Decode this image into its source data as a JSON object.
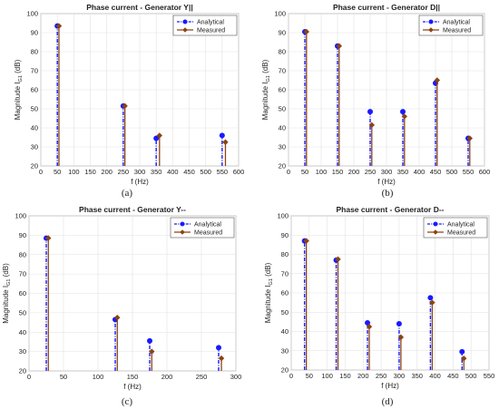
{
  "chart_data": [
    {
      "panel": "(a)",
      "type": "stem",
      "title": "Phase current - Generator Y||",
      "xlabel": "f (Hz)",
      "ylabel": "Magnitude I",
      "ylabel_sub": "G1",
      "ylabel_unit": " (dB)",
      "xlim": [
        0,
        600
      ],
      "ylim": [
        20,
        100
      ],
      "xticks": [
        0,
        50,
        100,
        150,
        200,
        250,
        300,
        350,
        400,
        450,
        500,
        550,
        600
      ],
      "yticks": [
        20,
        30,
        40,
        50,
        60,
        70,
        80,
        90,
        100
      ],
      "grid": true,
      "legend_position": "top-right",
      "series": [
        {
          "name": "Analytical",
          "color": "#1a1aff",
          "marker": "circle",
          "line": "dash-dot",
          "x": [
            50,
            250,
            350,
            550
          ],
          "y": [
            93.5,
            51.5,
            34.5,
            36
          ]
        },
        {
          "name": "Measured",
          "color": "#8b4513",
          "marker": "diamond",
          "line": "solid",
          "x": [
            55,
            255,
            360,
            560
          ],
          "y": [
            93.5,
            51.5,
            36,
            32.5
          ]
        }
      ]
    },
    {
      "panel": "(b)",
      "type": "stem",
      "title": "Phase current - Generator D||",
      "xlabel": "f (Hz)",
      "ylabel": "Magnitude I",
      "ylabel_sub": "G1",
      "ylabel_unit": " (dB)",
      "xlim": [
        0,
        600
      ],
      "ylim": [
        20,
        100
      ],
      "xticks": [
        0,
        50,
        100,
        150,
        200,
        250,
        300,
        350,
        400,
        450,
        500,
        550,
        600
      ],
      "yticks": [
        20,
        30,
        40,
        50,
        60,
        70,
        80,
        90,
        100
      ],
      "grid": true,
      "legend_position": "top-right",
      "series": [
        {
          "name": "Analytical",
          "color": "#1a1aff",
          "marker": "circle",
          "line": "dash-dot",
          "x": [
            50,
            150,
            250,
            350,
            450,
            550
          ],
          "y": [
            90.5,
            83,
            48.5,
            48.5,
            63.5,
            34.5
          ]
        },
        {
          "name": "Measured",
          "color": "#8b4513",
          "marker": "diamond",
          "line": "solid",
          "x": [
            55,
            155,
            255,
            355,
            455,
            555
          ],
          "y": [
            90.5,
            83,
            41.5,
            46,
            65,
            34.5
          ]
        }
      ]
    },
    {
      "panel": "(c)",
      "type": "stem",
      "title": "Phase current - Generator Y--",
      "xlabel": "f (Hz)",
      "ylabel": "Magnitude I",
      "ylabel_sub": "G1",
      "ylabel_unit": " (dB)",
      "xlim": [
        0,
        300
      ],
      "ylim": [
        20,
        100
      ],
      "xticks": [
        0,
        50,
        100,
        150,
        200,
        250,
        300
      ],
      "yticks": [
        20,
        30,
        40,
        50,
        60,
        70,
        80,
        90,
        100
      ],
      "grid": true,
      "legend_position": "top-right",
      "series": [
        {
          "name": "Analytical",
          "color": "#1a1aff",
          "marker": "circle",
          "line": "dash-dot",
          "x": [
            25,
            125,
            175,
            275
          ],
          "y": [
            88.5,
            46.5,
            35.5,
            32
          ]
        },
        {
          "name": "Measured",
          "color": "#8b4513",
          "marker": "diamond",
          "line": "solid",
          "x": [
            28,
            128,
            178,
            279
          ],
          "y": [
            88.5,
            47.5,
            30,
            26.5
          ]
        }
      ]
    },
    {
      "panel": "(d)",
      "type": "stem",
      "title": "Phase current - Generator D--",
      "xlabel": "f (Hz)",
      "ylabel": "Magnitude I",
      "ylabel_sub": "G1",
      "ylabel_unit": " (dB)",
      "xlim": [
        0,
        550
      ],
      "ylim": [
        20,
        100
      ],
      "xticks": [
        0,
        50,
        100,
        150,
        200,
        250,
        300,
        350,
        400,
        450,
        500,
        550
      ],
      "yticks": [
        20,
        30,
        40,
        50,
        60,
        70,
        80,
        90,
        100
      ],
      "grid": true,
      "legend_position": "top-right",
      "series": [
        {
          "name": "Analytical",
          "color": "#1a1aff",
          "marker": "circle",
          "line": "dash-dot",
          "x": [
            37,
            125,
            212,
            300,
            387,
            475
          ],
          "y": [
            87,
            77,
            44.5,
            44,
            57.5,
            29.5
          ]
        },
        {
          "name": "Measured",
          "color": "#8b4513",
          "marker": "diamond",
          "line": "solid",
          "x": [
            42,
            130,
            217,
            305,
            392,
            480
          ],
          "y": [
            87,
            77.5,
            42.5,
            37,
            55,
            26
          ]
        }
      ]
    }
  ]
}
